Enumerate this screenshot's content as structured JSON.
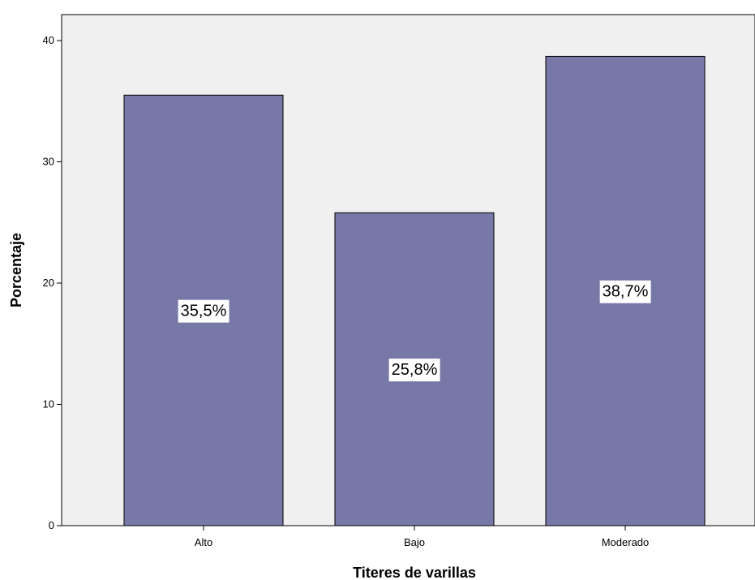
{
  "chart_data": {
    "type": "bar",
    "categories": [
      "Alto",
      "Bajo",
      "Moderado"
    ],
    "values": [
      35.5,
      25.8,
      38.7
    ],
    "data_labels": [
      "35,5%",
      "25,8%",
      "38,7%"
    ],
    "xlabel": "Titeres de varillas",
    "ylabel": "Porcentaje",
    "ylim": [
      0,
      40
    ],
    "yticks": [
      0,
      10,
      20,
      30,
      40
    ],
    "ytick_labels": [
      "0",
      "10",
      "20",
      "30",
      "40"
    ],
    "grid": false,
    "colors": {
      "bar_fill": "#7878a8",
      "bar_stroke": "#000000",
      "plot_background": "#f0f0f0",
      "label_background": "#ffffff"
    }
  }
}
